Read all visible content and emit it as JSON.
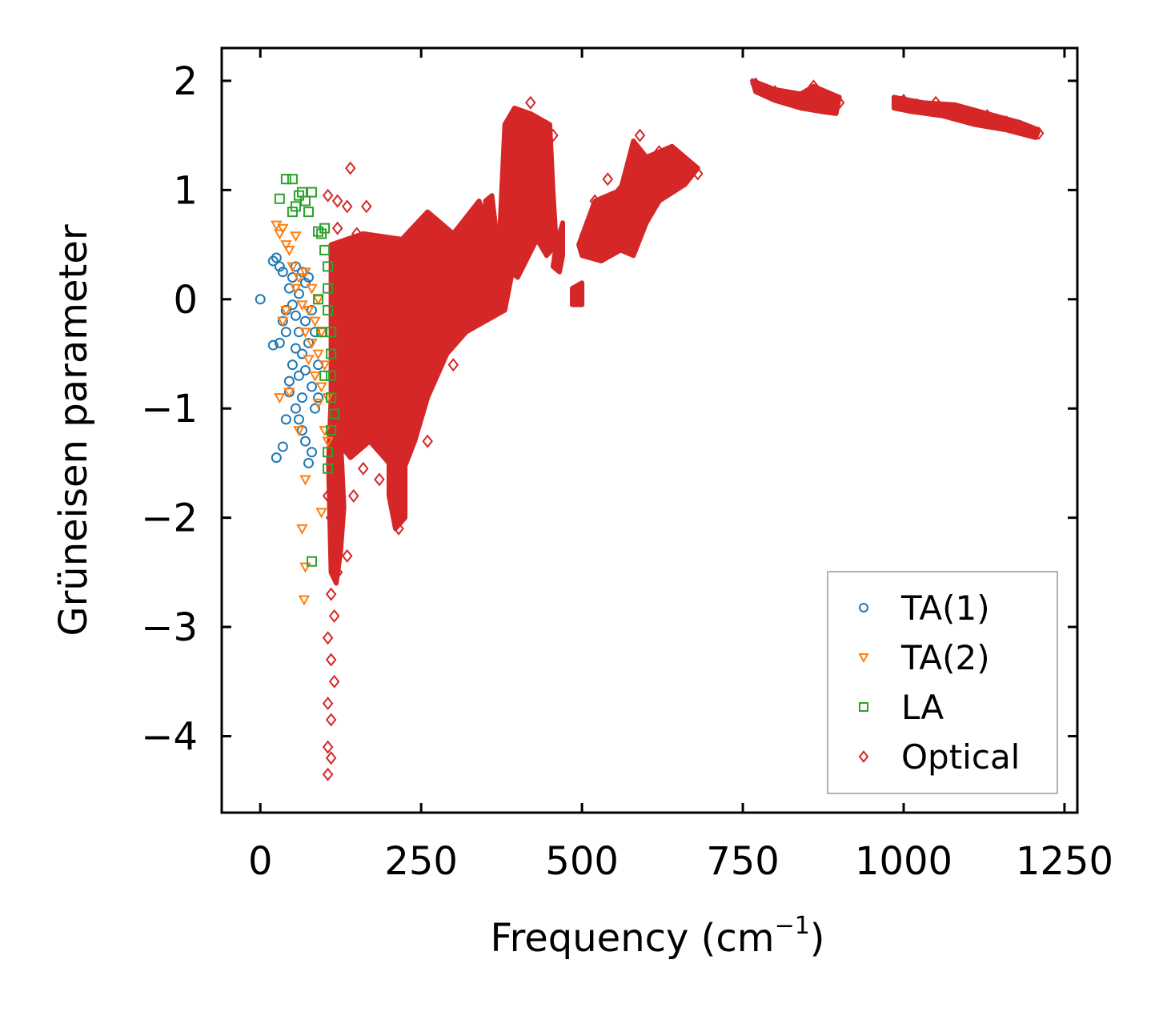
{
  "chart_data": {
    "type": "scatter",
    "title": "",
    "xlabel": "Frequency (cm",
    "xlabel_sup": "−1",
    "xlabel_close": ")",
    "ylabel": "Grüneisen parameter",
    "xlim": [
      -60,
      1270
    ],
    "ylim": [
      -4.7,
      2.3
    ],
    "xticks": [
      0,
      250,
      500,
      750,
      1000,
      1250
    ],
    "xtick_labels": [
      "0",
      "250",
      "500",
      "750",
      "1000",
      "1250"
    ],
    "yticks": [
      2,
      1,
      0,
      -1,
      -2,
      -3,
      -4
    ],
    "ytick_labels": [
      "2",
      "1",
      "0",
      "−1",
      "−2",
      "−3",
      "−4"
    ],
    "grid": false,
    "legend_position": "bottom-right",
    "series": [
      {
        "name": "TA(1)",
        "marker": "circle",
        "color": "#1f77b4",
        "points": [
          [
            0,
            0
          ],
          [
            20,
            0.35
          ],
          [
            25,
            0.38
          ],
          [
            30,
            0.3
          ],
          [
            30,
            -0.4
          ],
          [
            35,
            -0.2
          ],
          [
            35,
            0.25
          ],
          [
            40,
            -0.1
          ],
          [
            40,
            -0.3
          ],
          [
            45,
            0.1
          ],
          [
            45,
            -0.75
          ],
          [
            45,
            -0.85
          ],
          [
            50,
            0.2
          ],
          [
            50,
            -0.05
          ],
          [
            50,
            -0.6
          ],
          [
            55,
            0.3
          ],
          [
            55,
            -0.15
          ],
          [
            55,
            -0.45
          ],
          [
            55,
            -1.0
          ],
          [
            60,
            0.05
          ],
          [
            60,
            -0.3
          ],
          [
            60,
            -0.7
          ],
          [
            60,
            -1.1
          ],
          [
            65,
            0.25
          ],
          [
            65,
            -0.5
          ],
          [
            65,
            -0.9
          ],
          [
            65,
            -1.2
          ],
          [
            70,
            0.15
          ],
          [
            70,
            -0.2
          ],
          [
            70,
            -0.65
          ],
          [
            70,
            -1.3
          ],
          [
            75,
            0.2
          ],
          [
            75,
            -0.4
          ],
          [
            75,
            -1.5
          ],
          [
            80,
            -0.1
          ],
          [
            80,
            -0.8
          ],
          [
            80,
            -1.4
          ],
          [
            85,
            -0.3
          ],
          [
            85,
            -1.0
          ],
          [
            90,
            -0.6
          ],
          [
            90,
            -0.9
          ],
          [
            25,
            -1.45
          ],
          [
            35,
            -1.35
          ],
          [
            40,
            -1.1
          ],
          [
            20,
            -0.42
          ]
        ]
      },
      {
        "name": "TA(2)",
        "marker": "triangle-down",
        "color": "#ff7f0e",
        "points": [
          [
            25,
            0.68
          ],
          [
            30,
            0.6
          ],
          [
            35,
            0.65
          ],
          [
            40,
            0.5
          ],
          [
            45,
            0.45
          ],
          [
            55,
            0.58
          ],
          [
            50,
            0.3
          ],
          [
            55,
            0.1
          ],
          [
            60,
            0.2
          ],
          [
            65,
            -0.05
          ],
          [
            70,
            0.25
          ],
          [
            70,
            -0.3
          ],
          [
            75,
            -0.1
          ],
          [
            75,
            -0.55
          ],
          [
            80,
            0.1
          ],
          [
            80,
            -0.4
          ],
          [
            85,
            -0.2
          ],
          [
            85,
            -0.7
          ],
          [
            90,
            0.0
          ],
          [
            90,
            -0.5
          ],
          [
            90,
            -0.95
          ],
          [
            95,
            -0.3
          ],
          [
            95,
            -0.8
          ],
          [
            100,
            -0.6
          ],
          [
            100,
            -1.2
          ],
          [
            105,
            -0.9
          ],
          [
            105,
            -1.3
          ],
          [
            35,
            -0.2
          ],
          [
            40,
            -0.1
          ],
          [
            30,
            -0.9
          ],
          [
            45,
            -0.85
          ],
          [
            60,
            -1.2
          ],
          [
            70,
            -1.65
          ],
          [
            95,
            -1.95
          ],
          [
            65,
            -2.1
          ],
          [
            70,
            -2.45
          ],
          [
            68,
            -2.75
          ]
        ]
      },
      {
        "name": "LA",
        "marker": "square",
        "color": "#2ca02c",
        "points": [
          [
            30,
            0.92
          ],
          [
            40,
            1.1
          ],
          [
            50,
            1.1
          ],
          [
            50,
            0.8
          ],
          [
            55,
            0.85
          ],
          [
            60,
            0.95
          ],
          [
            65,
            0.98
          ],
          [
            70,
            0.9
          ],
          [
            75,
            0.8
          ],
          [
            80,
            0.98
          ],
          [
            90,
            0.62
          ],
          [
            95,
            0.6
          ],
          [
            100,
            0.65
          ],
          [
            100,
            0.45
          ],
          [
            105,
            0.3
          ],
          [
            105,
            0.1
          ],
          [
            105,
            -0.1
          ],
          [
            110,
            -0.3
          ],
          [
            110,
            -0.5
          ],
          [
            110,
            -0.7
          ],
          [
            110,
            -0.9
          ],
          [
            115,
            -1.05
          ],
          [
            110,
            -1.2
          ],
          [
            105,
            -1.4
          ],
          [
            105,
            -1.55
          ],
          [
            80,
            -2.4
          ],
          [
            90,
            0.0
          ],
          [
            95,
            -0.3
          ],
          [
            100,
            -0.7
          ]
        ]
      },
      {
        "name": "Optical",
        "marker": "diamond",
        "color": "#d62728",
        "points": [
          [
            140,
            1.2
          ],
          [
            105,
            0.95
          ],
          [
            120,
            0.9
          ],
          [
            135,
            0.85
          ],
          [
            165,
            0.85
          ],
          [
            120,
            0.65
          ],
          [
            130,
            0.5
          ],
          [
            150,
            0.6
          ],
          [
            170,
            0.5
          ],
          [
            190,
            0.4
          ],
          [
            200,
            0.45
          ],
          [
            105,
            -1.8
          ],
          [
            110,
            -2.0
          ],
          [
            115,
            -2.2
          ],
          [
            120,
            -2.5
          ],
          [
            110,
            -2.7
          ],
          [
            115,
            -2.9
          ],
          [
            105,
            -3.1
          ],
          [
            110,
            -3.3
          ],
          [
            115,
            -3.5
          ],
          [
            105,
            -3.7
          ],
          [
            110,
            -3.85
          ],
          [
            105,
            -4.1
          ],
          [
            110,
            -4.2
          ],
          [
            105,
            -4.35
          ],
          [
            135,
            -2.35
          ],
          [
            145,
            -1.8
          ],
          [
            160,
            -1.55
          ],
          [
            185,
            -1.65
          ],
          [
            210,
            -1.9
          ],
          [
            215,
            -2.1
          ],
          [
            260,
            -1.3
          ],
          [
            300,
            -0.6
          ],
          [
            320,
            -0.1
          ],
          [
            350,
            0.3
          ],
          [
            380,
            0.8
          ],
          [
            395,
            1.7
          ],
          [
            420,
            1.8
          ],
          [
            455,
            1.5
          ],
          [
            490,
            0.0
          ],
          [
            505,
            0.6
          ],
          [
            520,
            0.9
          ],
          [
            540,
            1.1
          ],
          [
            560,
            1.0
          ],
          [
            590,
            1.5
          ],
          [
            620,
            1.35
          ],
          [
            650,
            1.2
          ],
          [
            680,
            1.15
          ],
          [
            520,
            0.75
          ],
          [
            580,
            0.5
          ],
          [
            630,
            1.15
          ],
          [
            770,
            1.97
          ],
          [
            800,
            1.9
          ],
          [
            830,
            1.85
          ],
          [
            860,
            1.88
          ],
          [
            880,
            1.82
          ],
          [
            900,
            1.8
          ],
          [
            860,
            1.95
          ],
          [
            1000,
            1.82
          ],
          [
            1020,
            1.78
          ],
          [
            1050,
            1.8
          ],
          [
            1080,
            1.72
          ],
          [
            1100,
            1.7
          ],
          [
            1130,
            1.68
          ],
          [
            1160,
            1.62
          ],
          [
            1180,
            1.58
          ],
          [
            1210,
            1.52
          ]
        ],
        "dense_regions": [
          {
            "points": [
              [
                110,
                0.5
              ],
              [
                160,
                0.6
              ],
              [
                220,
                0.55
              ],
              [
                260,
                0.8
              ],
              [
                300,
                0.6
              ],
              [
                340,
                0.9
              ],
              [
                370,
                0.4
              ],
              [
                400,
                0.5
              ],
              [
                380,
                -0.1
              ],
              [
                320,
                -0.3
              ],
              [
                290,
                -0.5
              ],
              [
                260,
                -0.9
              ],
              [
                240,
                -1.3
              ],
              [
                220,
                -1.6
              ],
              [
                200,
                -1.5
              ],
              [
                170,
                -1.3
              ],
              [
                140,
                -1.45
              ],
              [
                120,
                -1.3
              ],
              [
                110,
                -0.9
              ]
            ]
          },
          {
            "points": [
              [
                110,
                -0.9
              ],
              [
                125,
                -1.3
              ],
              [
                130,
                -1.9
              ],
              [
                125,
                -2.3
              ],
              [
                118,
                -2.6
              ],
              [
                110,
                -2.5
              ],
              [
                108,
                -2.0
              ],
              [
                106,
                -1.5
              ]
            ]
          },
          {
            "points": [
              [
                200,
                -1.4
              ],
              [
                225,
                -1.5
              ],
              [
                225,
                -2.0
              ],
              [
                210,
                -2.1
              ],
              [
                200,
                -1.8
              ]
            ]
          },
          {
            "points": [
              [
                370,
                0.35
              ],
              [
                380,
                1.6
              ],
              [
                395,
                1.75
              ],
              [
                420,
                1.7
              ],
              [
                450,
                1.6
              ],
              [
                455,
                1.0
              ],
              [
                460,
                0.5
              ],
              [
                445,
                0.4
              ],
              [
                430,
                0.55
              ],
              [
                400,
                0.2
              ]
            ]
          },
          {
            "points": [
              [
                350,
                0.5
              ],
              [
                370,
                0.45
              ],
              [
                360,
                0.95
              ],
              [
                350,
                0.9
              ]
            ]
          },
          {
            "points": [
              [
                470,
                0.7
              ],
              [
                460,
                0.5
              ],
              [
                455,
                0.3
              ],
              [
                465,
                0.25
              ],
              [
                470,
                0.4
              ]
            ]
          },
          {
            "points": [
              [
                495,
                0.5
              ],
              [
                520,
                0.9
              ],
              [
                560,
                1.0
              ],
              [
                580,
                1.45
              ],
              [
                600,
                1.3
              ],
              [
                640,
                1.4
              ],
              [
                680,
                1.2
              ],
              [
                660,
                1.05
              ],
              [
                620,
                0.9
              ],
              [
                600,
                0.7
              ],
              [
                580,
                0.4
              ],
              [
                560,
                0.45
              ],
              [
                530,
                0.35
              ],
              [
                500,
                0.4
              ]
            ]
          },
          {
            "points": [
              [
                485,
                0.1
              ],
              [
                500,
                0.15
              ],
              [
                500,
                -0.05
              ],
              [
                485,
                -0.05
              ]
            ]
          },
          {
            "points": [
              [
                765,
                2.0
              ],
              [
                800,
                1.92
              ],
              [
                840,
                1.88
              ],
              [
                860,
                1.95
              ],
              [
                880,
                1.9
              ],
              [
                900,
                1.85
              ],
              [
                895,
                1.7
              ],
              [
                870,
                1.72
              ],
              [
                840,
                1.75
              ],
              [
                800,
                1.82
              ],
              [
                770,
                1.9
              ]
            ]
          },
          {
            "points": [
              [
                985,
                1.85
              ],
              [
                1030,
                1.8
              ],
              [
                1080,
                1.78
              ],
              [
                1130,
                1.7
              ],
              [
                1180,
                1.62
              ],
              [
                1210,
                1.55
              ],
              [
                1205,
                1.48
              ],
              [
                1160,
                1.55
              ],
              [
                1110,
                1.6
              ],
              [
                1060,
                1.68
              ],
              [
                1010,
                1.72
              ],
              [
                985,
                1.75
              ]
            ]
          }
        ]
      }
    ]
  }
}
